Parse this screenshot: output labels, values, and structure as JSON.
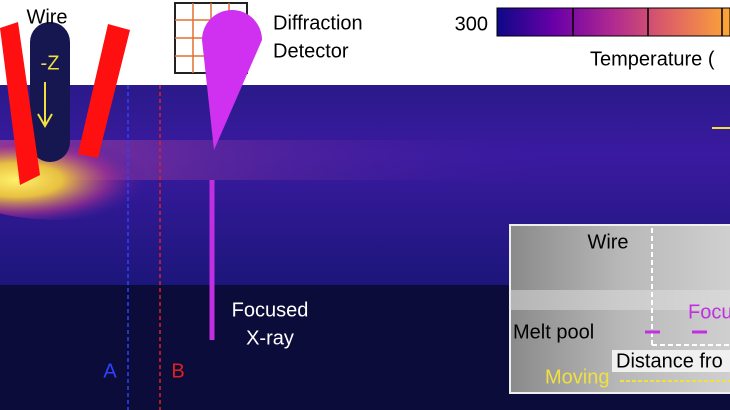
{
  "labels": {
    "wire": "Wire",
    "z_axis": "-Z",
    "detector": [
      "Diffraction",
      "Detector"
    ],
    "colorbar_min": "300",
    "colorbar_title": "Temperature (",
    "xray": [
      "Focused",
      "X-ray"
    ],
    "line_a": "A",
    "line_b": "B"
  },
  "inset": {
    "wire": "Wire",
    "melt_pool": "Melt pool",
    "focus": "Focu",
    "distance": "Distance fro",
    "moving": "Moving"
  }
}
